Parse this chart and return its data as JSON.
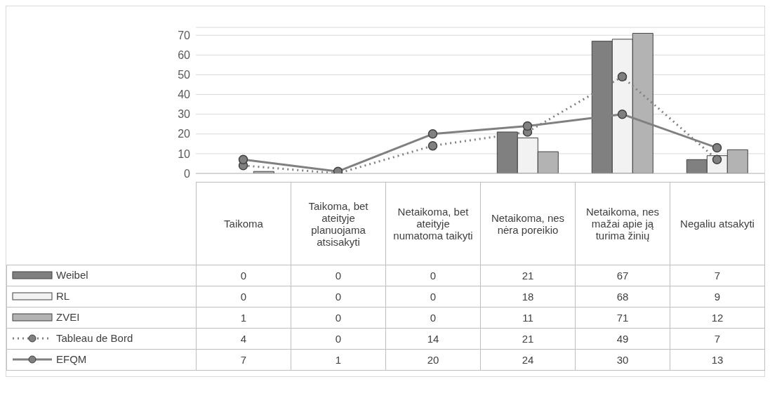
{
  "chart_data": {
    "type": "bar",
    "categories": [
      "Taikoma",
      "Taikoma, bet ateityje planuojama atsisakyti",
      "Netaikoma, bet ateityje numatoma taikyti",
      "Netaikoma, nes nėra poreikio",
      "Netaikoma, nes mažai apie ją turima žinių",
      "Negaliu atsakyti"
    ],
    "series": [
      {
        "name": "Weibel",
        "color": "#808080",
        "values": [
          0,
          0,
          0,
          21,
          67,
          7
        ]
      },
      {
        "name": "RL",
        "color": "#f2f2f2",
        "values": [
          0,
          0,
          0,
          18,
          68,
          9
        ]
      },
      {
        "name": "ZVEI",
        "color": "#b3b3b3",
        "values": [
          1,
          0,
          0,
          11,
          71,
          12
        ]
      },
      {
        "name": "Tableau de Bord",
        "type": "line",
        "color": "#808080",
        "line_style": "dotted",
        "values": [
          4,
          0,
          14,
          21,
          49,
          7
        ]
      },
      {
        "name": "EFQM",
        "type": "line",
        "color": "#808080",
        "line_style": "solid",
        "values": [
          7,
          1,
          20,
          24,
          30,
          13
        ]
      }
    ],
    "ylim": [
      0,
      74
    ],
    "yticks": [
      0,
      10,
      20,
      30,
      40,
      50,
      60,
      70
    ],
    "grid": "y",
    "marker": "circle",
    "legend": "bottom",
    "data_labels": true
  }
}
